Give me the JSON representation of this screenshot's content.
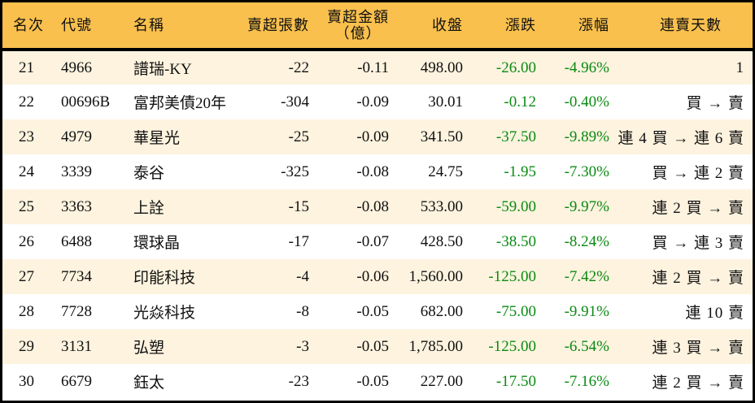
{
  "table": {
    "headers": {
      "rank": "名次",
      "code": "代號",
      "name": "名稱",
      "net_sell_lots": "賣超張數",
      "net_sell_amount_line1": "賣超金額",
      "net_sell_amount_line2": "（億）",
      "close": "收盤",
      "change": "漲跌",
      "change_pct": "漲幅",
      "streak": "連賣天數"
    },
    "rows": [
      {
        "rank": "21",
        "code": "4966",
        "name": "譜瑞-KY",
        "net_sell_lots": "-22",
        "net_sell_amount": "-0.11",
        "close": "498.00",
        "change": "-26.00",
        "change_pct": "-4.96%",
        "streak": "1"
      },
      {
        "rank": "22",
        "code": "00696B",
        "name": "富邦美債20年",
        "net_sell_lots": "-304",
        "net_sell_amount": "-0.09",
        "close": "30.01",
        "change": "-0.12",
        "change_pct": "-0.40%",
        "streak": "買 → 賣"
      },
      {
        "rank": "23",
        "code": "4979",
        "name": "華星光",
        "net_sell_lots": "-25",
        "net_sell_amount": "-0.09",
        "close": "341.50",
        "change": "-37.50",
        "change_pct": "-9.89%",
        "streak": "連 4 買 → 連 6 賣"
      },
      {
        "rank": "24",
        "code": "3339",
        "name": "泰谷",
        "net_sell_lots": "-325",
        "net_sell_amount": "-0.08",
        "close": "24.75",
        "change": "-1.95",
        "change_pct": "-7.30%",
        "streak": "買 → 連 2 賣"
      },
      {
        "rank": "25",
        "code": "3363",
        "name": "上詮",
        "net_sell_lots": "-15",
        "net_sell_amount": "-0.08",
        "close": "533.00",
        "change": "-59.00",
        "change_pct": "-9.97%",
        "streak": "連 2 買 → 賣"
      },
      {
        "rank": "26",
        "code": "6488",
        "name": "環球晶",
        "net_sell_lots": "-17",
        "net_sell_amount": "-0.07",
        "close": "428.50",
        "change": "-38.50",
        "change_pct": "-8.24%",
        "streak": "買 → 連 3 賣"
      },
      {
        "rank": "27",
        "code": "7734",
        "name": "印能科技",
        "net_sell_lots": "-4",
        "net_sell_amount": "-0.06",
        "close": "1,560.00",
        "change": "-125.00",
        "change_pct": "-7.42%",
        "streak": "連 2 買 → 賣"
      },
      {
        "rank": "28",
        "code": "7728",
        "name": "光焱科技",
        "net_sell_lots": "-8",
        "net_sell_amount": "-0.05",
        "close": "682.00",
        "change": "-75.00",
        "change_pct": "-9.91%",
        "streak": "連 10 賣"
      },
      {
        "rank": "29",
        "code": "3131",
        "name": "弘塑",
        "net_sell_lots": "-3",
        "net_sell_amount": "-0.05",
        "close": "1,785.00",
        "change": "-125.00",
        "change_pct": "-6.54%",
        "streak": "連 3 買 → 賣"
      },
      {
        "rank": "30",
        "code": "6679",
        "name": "鈺太",
        "net_sell_lots": "-23",
        "net_sell_amount": "-0.05",
        "close": "227.00",
        "change": "-17.50",
        "change_pct": "-7.16%",
        "streak": "連 2 買 → 賣"
      }
    ]
  },
  "colors": {
    "header_bg": "#F9C04D",
    "row_odd_bg": "#FDF3DF",
    "row_even_bg": "#FFFFFF",
    "negative_text": "#0A8A12",
    "border": "#000000"
  }
}
